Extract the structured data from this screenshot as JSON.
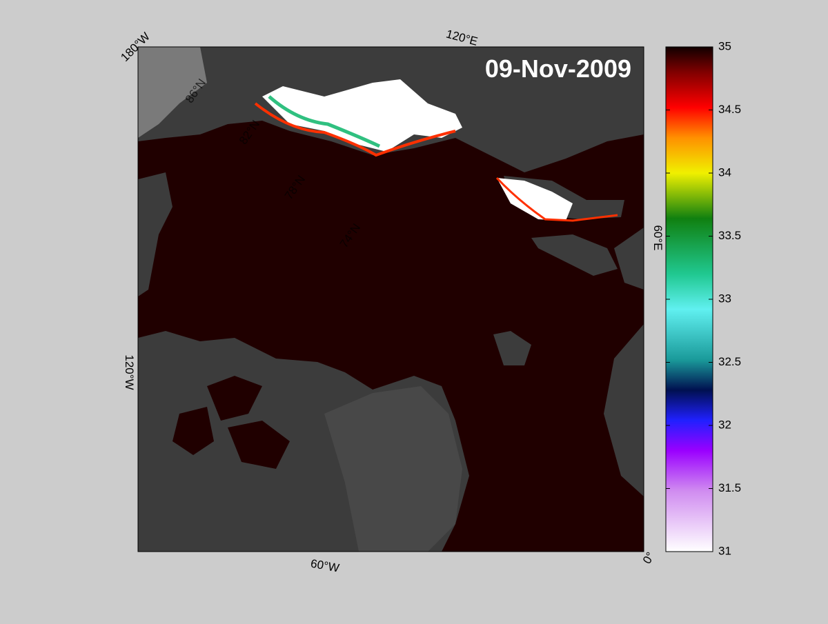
{
  "map": {
    "title": "09-Nov-2009",
    "lon_labels": [
      "180°W",
      "120°E",
      "60°E",
      "0°",
      "60°W",
      "120°W"
    ],
    "lat_labels": [
      "86°N",
      "82°N",
      "78°N",
      "74°N"
    ]
  },
  "colorbar": {
    "lim": [
      31,
      35
    ],
    "ticks": [
      31,
      31.5,
      32,
      32.5,
      33,
      33.5,
      34,
      34.5,
      35
    ]
  }
}
